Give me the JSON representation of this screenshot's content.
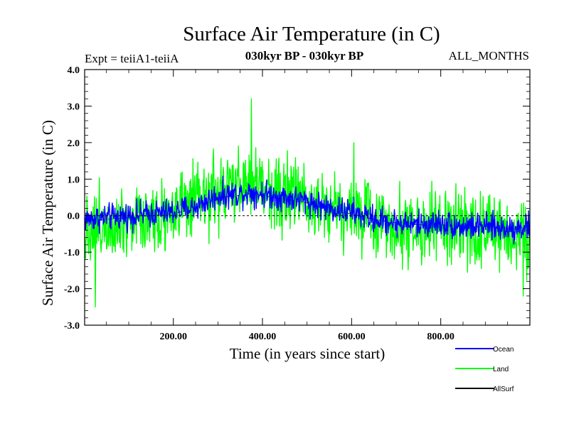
{
  "header": {
    "title": "Surface Air Temperature (in C)",
    "experiment": "Expt = teiiA1-teiiA",
    "period": "030kyr BP - 030kyr BP",
    "months": "ALL_MONTHS"
  },
  "chart_data": {
    "type": "line",
    "xlabel": "Time (in years since start)",
    "ylabel": "Surface Air Temperature (in C)",
    "xlim": [
      1,
      1000
    ],
    "ylim": [
      -3.0,
      4.0
    ],
    "x_ticks": [
      200,
      400,
      600,
      800
    ],
    "x_tick_labels": [
      "200.00",
      "400.00",
      "600.00",
      "800.00"
    ],
    "y_ticks": [
      4.0,
      3.0,
      2.0,
      1.0,
      0.0,
      -1.0,
      -2.0,
      -3.0
    ],
    "y_tick_labels": [
      "4.0",
      "3.0",
      "2.0",
      "1.0",
      "0.0",
      "-1.0",
      "-2.0",
      "-3.0"
    ],
    "grid": false,
    "legend_position": "bottom-right",
    "x": [
      0,
      50,
      100,
      150,
      200,
      250,
      300,
      350,
      375,
      400,
      450,
      500,
      550,
      600,
      650,
      700,
      750,
      800,
      850,
      900,
      950,
      1000
    ],
    "series": [
      {
        "name": "Ocean",
        "color": "#0000ff",
        "values": [
          -0.1,
          -0.05,
          0.0,
          0.05,
          0.1,
          0.25,
          0.55,
          0.6,
          0.65,
          0.6,
          0.5,
          0.4,
          0.2,
          0.1,
          -0.1,
          -0.2,
          -0.25,
          -0.2,
          -0.3,
          -0.3,
          -0.35,
          -0.3
        ],
        "noise": 0.45
      },
      {
        "name": "Land",
        "color": "#00ff00",
        "values": [
          -0.4,
          -0.2,
          -0.1,
          0.0,
          0.1,
          0.3,
          0.6,
          0.8,
          0.9,
          0.8,
          0.6,
          0.5,
          0.3,
          0.1,
          -0.1,
          -0.25,
          -0.35,
          -0.35,
          -0.4,
          -0.45,
          -0.5,
          -0.45
        ],
        "noise": 1.25,
        "extremes": [
          {
            "x": 25,
            "y": -2.5
          },
          {
            "x": 375,
            "y": 3.2
          },
          {
            "x": 605,
            "y": 2.0
          },
          {
            "x": 985,
            "y": -2.2
          }
        ]
      },
      {
        "name": "AllSurf",
        "color": "#000000",
        "values": [
          -0.15,
          -0.1,
          -0.05,
          0.0,
          0.05,
          0.2,
          0.5,
          0.55,
          0.6,
          0.55,
          0.45,
          0.35,
          0.15,
          0.05,
          -0.1,
          -0.2,
          -0.25,
          -0.25,
          -0.3,
          -0.3,
          -0.35,
          -0.3
        ],
        "noise": 0.0
      }
    ]
  }
}
